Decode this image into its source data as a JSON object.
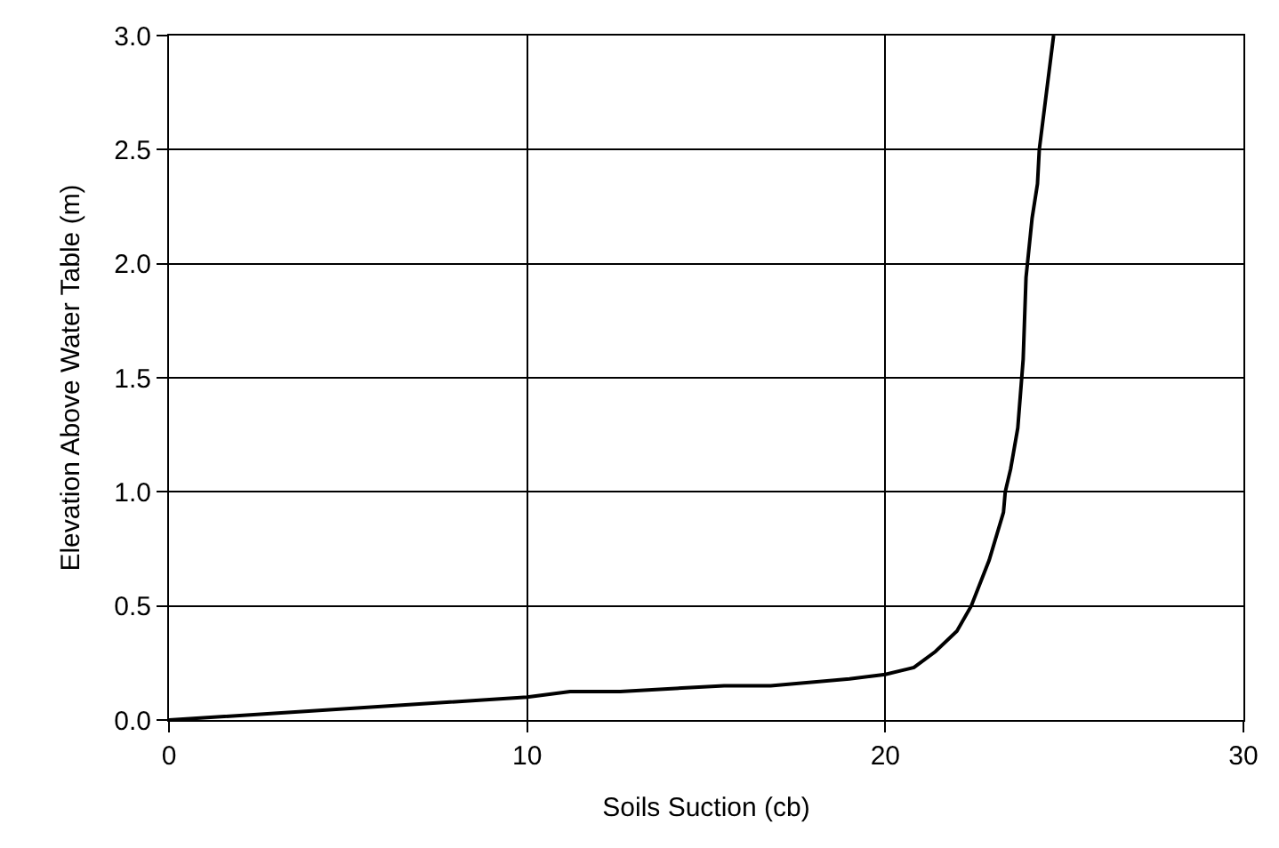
{
  "chart_data": {
    "type": "line",
    "xlabel": "Soils Suction (cb)",
    "ylabel": "Elevation Above Water Table (m)",
    "x": [
      0,
      10,
      11.2,
      12.6,
      15.5,
      16.8,
      19,
      20,
      20.8,
      21.4,
      22.0,
      22.4,
      22.9,
      23.3,
      23.35,
      23.5,
      23.7,
      23.85,
      23.93,
      24.1,
      24.25,
      24.3,
      24.7
    ],
    "series": [
      {
        "color": "#000000",
        "values": [
          0,
          0.1,
          0.125,
          0.125,
          0.15,
          0.15,
          0.18,
          0.2,
          0.23,
          0.3,
          0.39,
          0.5,
          0.7,
          0.91,
          1.0,
          1.1,
          1.28,
          1.58,
          1.94,
          2.2,
          2.35,
          2.5,
          3.0
        ]
      }
    ],
    "xlim": [
      0,
      30
    ],
    "xticks": [
      0,
      10,
      20,
      30
    ],
    "ylim": [
      0,
      3
    ],
    "yticks": [
      {
        "value": 0,
        "label": "0.0"
      },
      {
        "value": 0.5,
        "label": "0.5"
      },
      {
        "value": 1,
        "label": "1.0"
      },
      {
        "value": 1.5,
        "label": "1.5"
      },
      {
        "value": 2,
        "label": "2.0"
      },
      {
        "value": 2.5,
        "label": "2.5"
      },
      {
        "value": 3,
        "label": "3.0"
      }
    ],
    "grid": true,
    "marker": "none",
    "line_style": "solid"
  }
}
